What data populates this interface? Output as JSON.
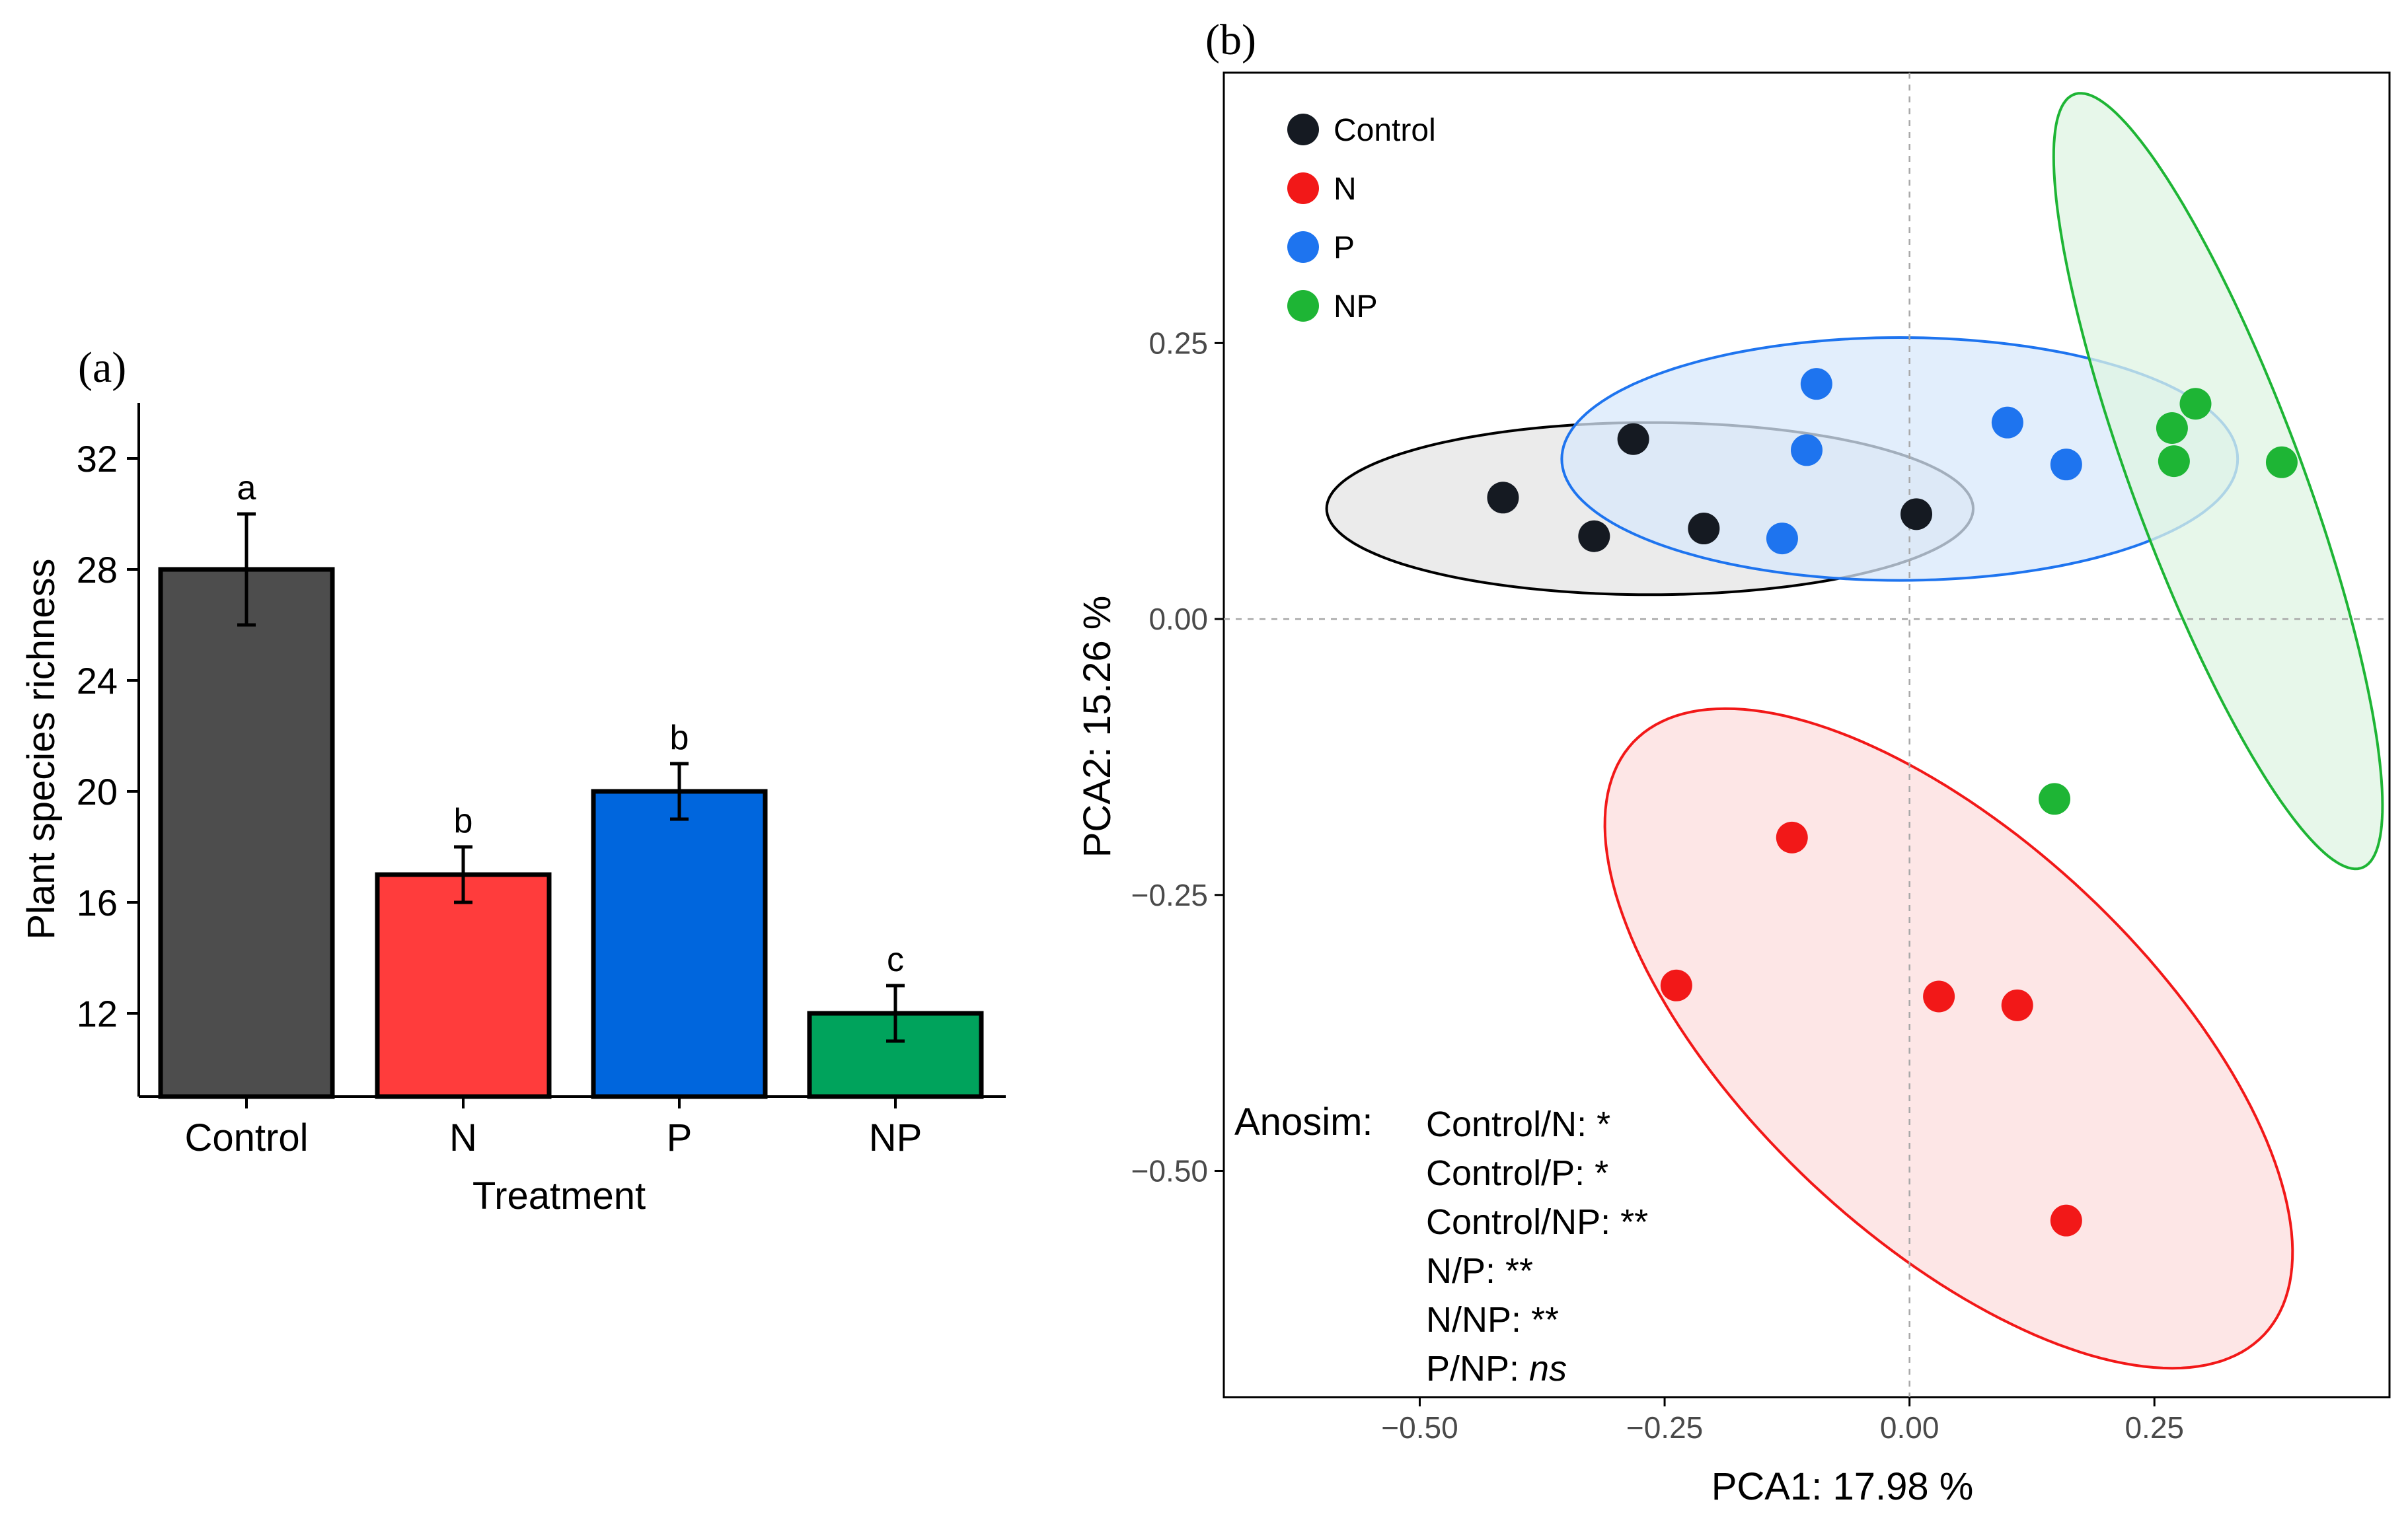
{
  "chart_data": [
    {
      "panel_label": "(a)",
      "type": "bar",
      "xlabel": "Treatment",
      "ylabel": "Plant species richness",
      "ylim": [
        9,
        34
      ],
      "yticks": [
        "32",
        "28",
        "24",
        "20",
        "16",
        "12"
      ],
      "bars": [
        {
          "category": "Control",
          "value": 28,
          "error": 2,
          "letter": "a",
          "color": "#4d4d4d"
        },
        {
          "category": "N",
          "value": 17,
          "error": 1,
          "letter": "b",
          "color": "#ff3c3c"
        },
        {
          "category": "P",
          "value": 20,
          "error": 1,
          "letter": "b",
          "color": "#0066dd"
        },
        {
          "category": "NP",
          "value": 12,
          "error": 1,
          "letter": "c",
          "color": "#00a35c"
        }
      ]
    },
    {
      "panel_label": "(b)",
      "type": "scatter",
      "xlabel": "PCA1: 17.98 %",
      "ylabel": "PCA2: 15.26 %",
      "xlim": [
        -0.7,
        0.49
      ],
      "ylim": [
        -0.705,
        0.495
      ],
      "xticks": [
        "−0.50",
        "−0.25",
        "0.00",
        "0.25"
      ],
      "yticks": [
        "0.25",
        "0.00",
        "−0.25",
        "−0.50"
      ],
      "reference_lines": {
        "x": 0,
        "y": 0,
        "style": "dashed"
      },
      "series": [
        {
          "name": "Control",
          "color": "#151a22",
          "points": [
            [
              -0.415,
              0.11
            ],
            [
              -0.322,
              0.075
            ],
            [
              -0.282,
              0.163
            ],
            [
              -0.21,
              0.082
            ],
            [
              0.007,
              0.095
            ]
          ],
          "ellipse": {
            "cx": -0.265,
            "cy": 0.1,
            "rx": 0.33,
            "ry": 0.078,
            "angle_deg": 0,
            "fill": "#e4e4e4",
            "stroke": "#000000"
          }
        },
        {
          "name": "N",
          "color": "#f21818",
          "points": [
            [
              -0.238,
              -0.332
            ],
            [
              -0.12,
              -0.198
            ],
            [
              0.03,
              -0.342
            ],
            [
              0.11,
              -0.35
            ],
            [
              0.16,
              -0.545
            ]
          ],
          "ellipse": {
            "cx": 0.04,
            "cy": -0.38,
            "rx": 0.42,
            "ry": 0.19,
            "angle_deg": -38,
            "fill": "#fcdede",
            "stroke": "#f21818"
          }
        },
        {
          "name": "P",
          "color": "#1e74ef",
          "points": [
            [
              -0.095,
              0.213
            ],
            [
              -0.105,
              0.153
            ],
            [
              -0.13,
              0.073
            ],
            [
              0.1,
              0.178
            ],
            [
              0.16,
              0.14
            ]
          ],
          "ellipse": {
            "cx": -0.01,
            "cy": 0.145,
            "rx": 0.345,
            "ry": 0.11,
            "angle_deg": 0,
            "fill": "#d8e8fb",
            "stroke": "#1e74ef"
          }
        },
        {
          "name": "NP",
          "color": "#1eb535",
          "points": [
            [
              0.268,
              0.173
            ],
            [
              0.292,
              0.195
            ],
            [
              0.27,
              0.143
            ],
            [
              0.38,
              0.142
            ],
            [
              0.148,
              -0.163
            ]
          ],
          "ellipse": {
            "cx": 0.315,
            "cy": 0.125,
            "rx": 0.38,
            "ry": 0.085,
            "angle_deg": -67,
            "fill": "#dff4e3",
            "stroke": "#1eb535"
          }
        }
      ],
      "legend_position": "top-left",
      "annotation": {
        "title": "Anosim:",
        "lines": [
          {
            "text": "Control/N: *"
          },
          {
            "text": "Control/P: *"
          },
          {
            "text": "Control/NP: **"
          },
          {
            "text": "N/P: **"
          },
          {
            "text": "N/NP: **"
          },
          {
            "text": "P/NP: ",
            "italic": "ns"
          }
        ]
      }
    }
  ]
}
